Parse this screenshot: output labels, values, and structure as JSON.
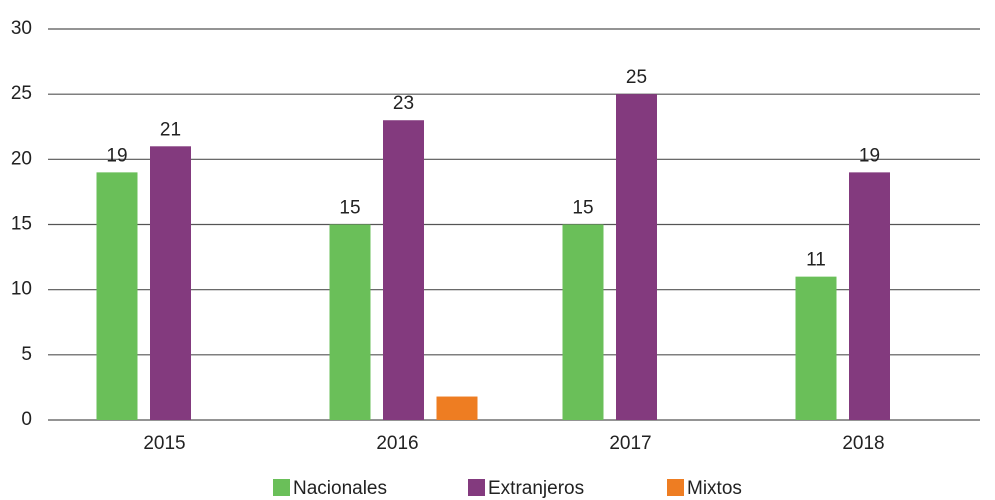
{
  "chart_data": {
    "type": "bar",
    "categories": [
      "2015",
      "2016",
      "2017",
      "2018"
    ],
    "series": [
      {
        "name": "Nacionales",
        "color": "#6abf59",
        "values": [
          19,
          15,
          15,
          11
        ],
        "show_labels": true
      },
      {
        "name": "Extranjeros",
        "color": "#833a7e",
        "values": [
          21,
          23,
          25,
          19
        ],
        "show_labels": true
      },
      {
        "name": "Mixtos",
        "color": "#ee7d22",
        "values": [
          null,
          1.8,
          null,
          null
        ],
        "show_labels": false
      }
    ],
    "ylim": [
      0,
      30
    ],
    "yticks": [
      0,
      5,
      10,
      15,
      20,
      25,
      30
    ],
    "grid": true,
    "legend": "bottom"
  }
}
